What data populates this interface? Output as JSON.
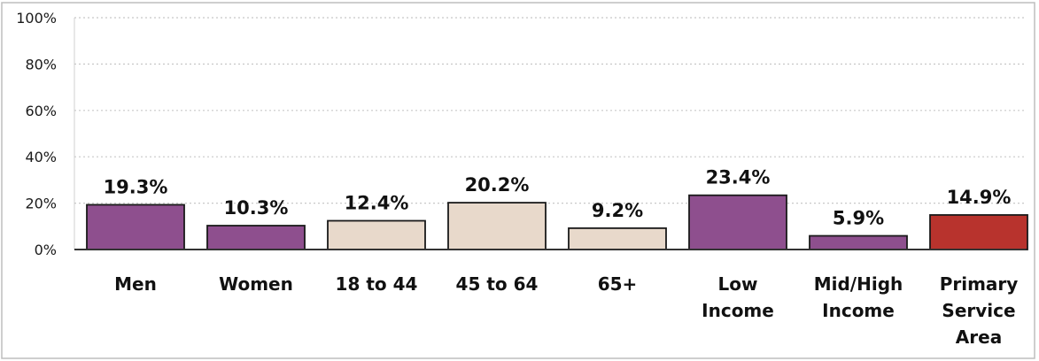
{
  "chart_data": {
    "type": "bar",
    "title": "",
    "xlabel": "",
    "ylabel": "",
    "ylim": [
      0,
      100
    ],
    "y_ticks": [
      "0%",
      "20%",
      "40%",
      "60%",
      "80%",
      "100%"
    ],
    "grid": true,
    "legend": "none",
    "categories": [
      [
        "Men"
      ],
      [
        "Women"
      ],
      [
        "18 to 44"
      ],
      [
        "45 to 64"
      ],
      [
        "65+"
      ],
      [
        "Low",
        "Income"
      ],
      [
        "Mid/High",
        "Income"
      ],
      [
        "Primary",
        "Service",
        "Area"
      ]
    ],
    "values": [
      19.3,
      10.3,
      12.4,
      20.2,
      9.2,
      23.4,
      5.9,
      14.9
    ],
    "value_labels": [
      "19.3%",
      "10.3%",
      "12.4%",
      "20.2%",
      "9.2%",
      "23.4%",
      "5.9%",
      "14.9%"
    ],
    "bar_colors": [
      "#8e4f8e",
      "#8e4f8e",
      "#e8d9cb",
      "#e8d9cb",
      "#e8d9cb",
      "#8e4f8e",
      "#8e4f8e",
      "#b8332d"
    ],
    "grid_color": "#c8c8c8",
    "axis_color": "#333333",
    "bar_stroke_color": "#1a1a1a"
  }
}
